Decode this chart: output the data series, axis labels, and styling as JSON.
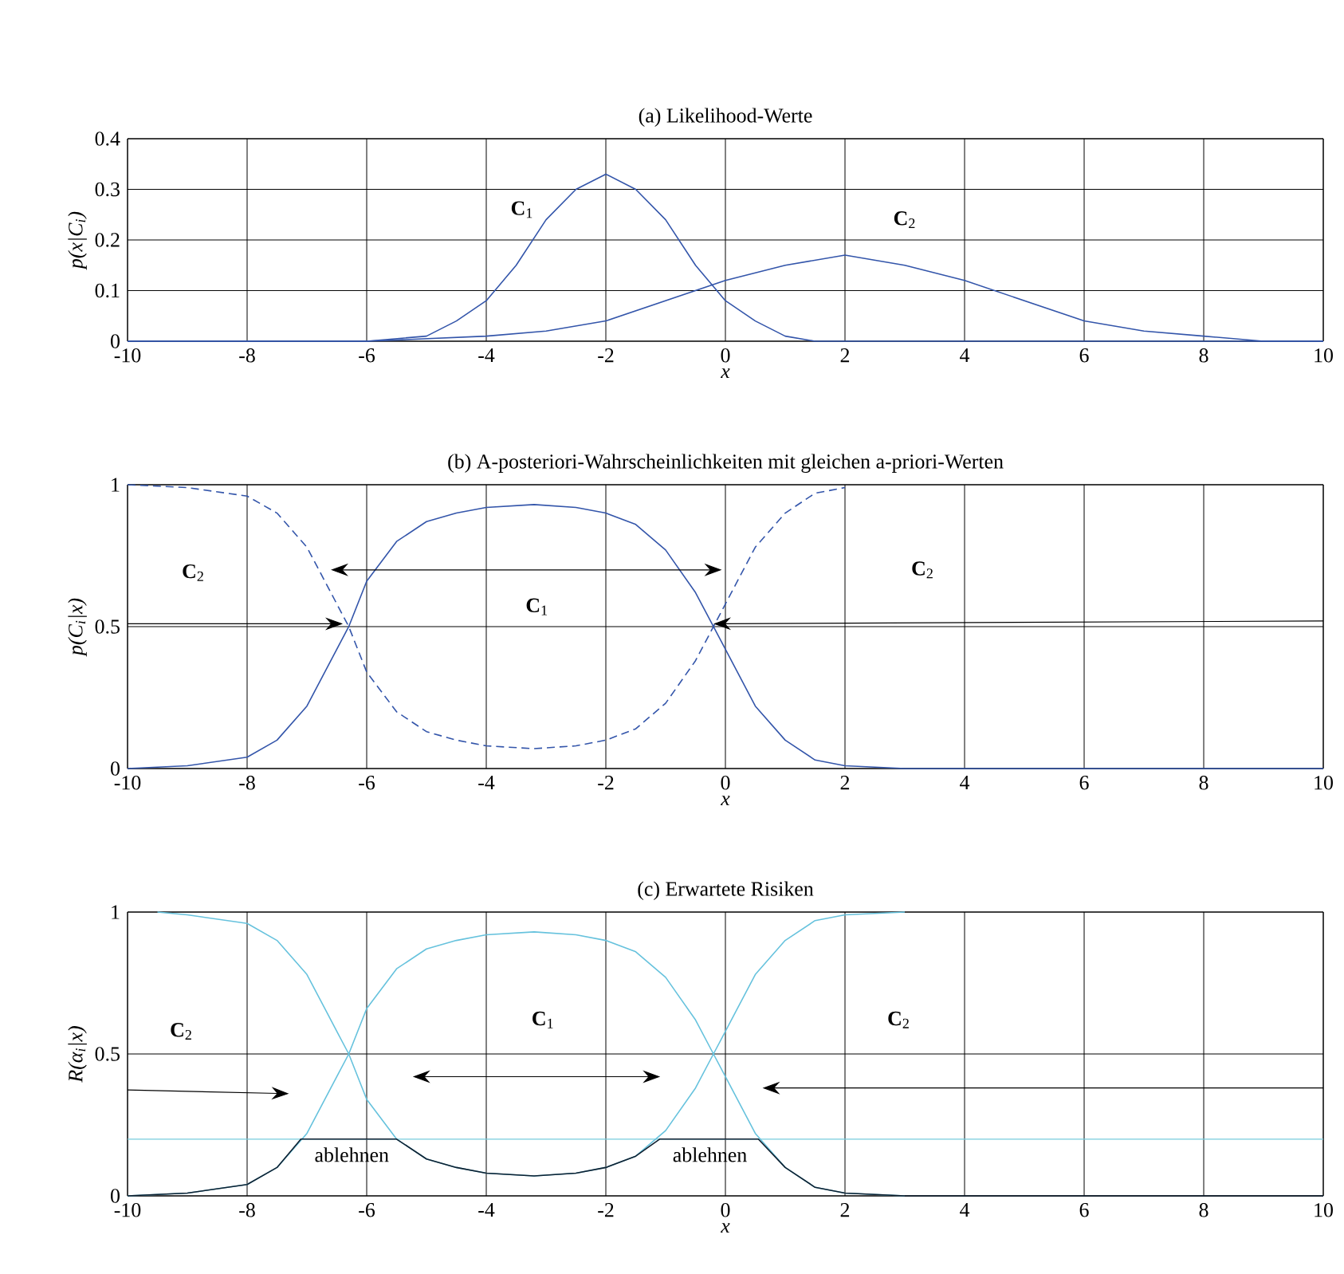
{
  "chart_data": [
    {
      "type": "line",
      "title": "(a) Likelihood-Werte",
      "xlabel": "x",
      "ylabel": "p(x|C$_{i}$)",
      "xlim": [
        -10,
        10
      ],
      "ylim": [
        0,
        0.4
      ],
      "xticks": [
        -10,
        -8,
        -6,
        -4,
        -2,
        0,
        2,
        4,
        6,
        8,
        10
      ],
      "yticks": [
        0,
        0.1,
        0.2,
        0.3,
        0.4
      ],
      "grid": true,
      "series": [
        {
          "color": "#3355aa",
          "line_style": "solid",
          "x": [
            -10,
            -8,
            -6,
            -5,
            -4.5,
            -4,
            -3.5,
            -3,
            -2.5,
            -2,
            -1.5,
            -1,
            -0.5,
            0,
            0.5,
            1,
            1.5,
            2,
            3,
            4,
            6,
            8,
            10
          ],
          "values": [
            0,
            0,
            0,
            0.01,
            0.04,
            0.08,
            0.15,
            0.24,
            0.3,
            0.33,
            0.3,
            0.24,
            0.15,
            0.08,
            0.04,
            0.01,
            0,
            0,
            0,
            0,
            0,
            0,
            0
          ]
        },
        {
          "color": "#3355aa",
          "line_style": "solid",
          "x": [
            -10,
            -8,
            -6,
            -4,
            -3,
            -2,
            -1,
            0,
            1,
            2,
            3,
            4,
            5,
            6,
            7,
            8,
            9,
            10
          ],
          "values": [
            0,
            0,
            0,
            0.01,
            0.02,
            0.04,
            0.08,
            0.12,
            0.15,
            0.17,
            0.15,
            0.12,
            0.08,
            0.04,
            0.02,
            0.01,
            0,
            0
          ]
        }
      ],
      "annotations": [
        "**C**$_{1}$",
        "**C**$_{2}$"
      ]
    },
    {
      "type": "line",
      "title": "(b) A-posteriori-Wahrscheinlichkeiten mit gleichen a-priori-Werten",
      "xlabel": "x",
      "ylabel": "p(C$_{i}$|x)",
      "xlim": [
        -10,
        10
      ],
      "ylim": [
        0,
        1
      ],
      "xticks": [
        -10,
        -8,
        -6,
        -4,
        -2,
        0,
        2,
        4,
        6,
        8,
        10
      ],
      "yticks": [
        0,
        0.5,
        1
      ],
      "grid": true,
      "series": [
        {
          "color": "#3355aa",
          "line_style": "solid",
          "x": [
            -10,
            -9,
            -8,
            -7.5,
            -7,
            -6.5,
            -6.3,
            -6,
            -5.5,
            -5,
            -4.5,
            -4,
            -3.2,
            -2.5,
            -2,
            -1.5,
            -1,
            -0.5,
            -0.2,
            0,
            0.5,
            1,
            1.5,
            2,
            3,
            10
          ],
          "values": [
            0,
            0.01,
            0.04,
            0.1,
            0.22,
            0.42,
            0.5,
            0.66,
            0.8,
            0.87,
            0.9,
            0.92,
            0.93,
            0.92,
            0.9,
            0.86,
            0.77,
            0.62,
            0.5,
            0.42,
            0.22,
            0.1,
            0.03,
            0.01,
            0,
            0
          ]
        },
        {
          "color": "#3355aa",
          "line_style": "dashed",
          "x": [
            -10,
            -9,
            -8,
            -7.5,
            -7,
            -6.5,
            -6.3,
            -6,
            -5.5,
            -5,
            -4.5,
            -4,
            -3.2,
            -2.5,
            -2,
            -1.5,
            -1,
            -0.5,
            -0.2,
            0,
            0.5,
            1,
            1.5,
            2
          ],
          "values": [
            1,
            0.99,
            0.96,
            0.9,
            0.78,
            0.58,
            0.5,
            0.34,
            0.2,
            0.13,
            0.1,
            0.08,
            0.07,
            0.08,
            0.1,
            0.14,
            0.23,
            0.38,
            0.5,
            0.58,
            0.78,
            0.9,
            0.97,
            0.99
          ]
        }
      ],
      "annotations": [
        "**C**$_{2}$",
        "**C**$_{1}$",
        "**C**$_{2}$"
      ]
    },
    {
      "type": "line",
      "title": "(c) Erwartete Risiken",
      "xlabel": "x",
      "ylabel": "R(α$_{i}$|x)",
      "xlim": [
        -10,
        10
      ],
      "ylim": [
        0,
        1
      ],
      "xticks": [
        -10,
        -8,
        -6,
        -4,
        -2,
        0,
        2,
        4,
        6,
        8,
        10
      ],
      "yticks": [
        0,
        0.5,
        1
      ],
      "grid": true,
      "ref_lines": [
        {
          "axis": "y",
          "value": 0.2,
          "color": "#77ccdd"
        }
      ],
      "series": [
        {
          "color": "#66c2dd",
          "line_style": "solid",
          "x": [
            -10,
            -9,
            -8,
            -7.5,
            -7,
            -6.5,
            -6.3,
            -6,
            -5.5,
            -5,
            -4.5,
            -4,
            -3.2,
            -2.5,
            -2,
            -1.5,
            -1,
            -0.5,
            -0.2,
            0,
            0.5,
            1,
            1.5,
            2,
            3
          ],
          "values": [
            0,
            0.01,
            0.04,
            0.1,
            0.22,
            0.42,
            0.5,
            0.66,
            0.8,
            0.87,
            0.9,
            0.92,
            0.93,
            0.92,
            0.9,
            0.86,
            0.77,
            0.62,
            0.5,
            0.42,
            0.22,
            0.1,
            0.03,
            0.01,
            0
          ]
        },
        {
          "color": "#66c2dd",
          "line_style": "solid",
          "x": [
            -9.5,
            -9,
            -8,
            -7.5,
            -7,
            -6.5,
            -6.3,
            -6,
            -5.5,
            -5,
            -4.5,
            -4,
            -3.2,
            -2.5,
            -2,
            -1.5,
            -1,
            -0.5,
            -0.2,
            0,
            0.5,
            1,
            1.5,
            2,
            3
          ],
          "values": [
            1,
            0.99,
            0.96,
            0.9,
            0.78,
            0.58,
            0.5,
            0.34,
            0.2,
            0.13,
            0.1,
            0.08,
            0.07,
            0.08,
            0.1,
            0.14,
            0.23,
            0.38,
            0.5,
            0.58,
            0.78,
            0.9,
            0.97,
            0.99,
            1
          ]
        },
        {
          "color": "#102030",
          "line_style": "solid",
          "x": [
            -10,
            -9,
            -8,
            -7.5,
            -7.1,
            -5.5,
            -5,
            -4.5,
            -4,
            -3.2,
            -2.5,
            -2,
            -1.5,
            -1.1,
            0.55,
            1,
            1.5,
            2,
            3,
            10
          ],
          "values": [
            0,
            0.01,
            0.04,
            0.1,
            0.2,
            0.2,
            0.13,
            0.1,
            0.08,
            0.07,
            0.08,
            0.1,
            0.14,
            0.2,
            0.2,
            0.1,
            0.03,
            0.01,
            0,
            0
          ]
        }
      ],
      "annotations": [
        "**C**$_{2}$",
        "**C**$_{1}$",
        "**C**$_{2}$",
        "ablehnen",
        "ablehnen"
      ]
    }
  ]
}
